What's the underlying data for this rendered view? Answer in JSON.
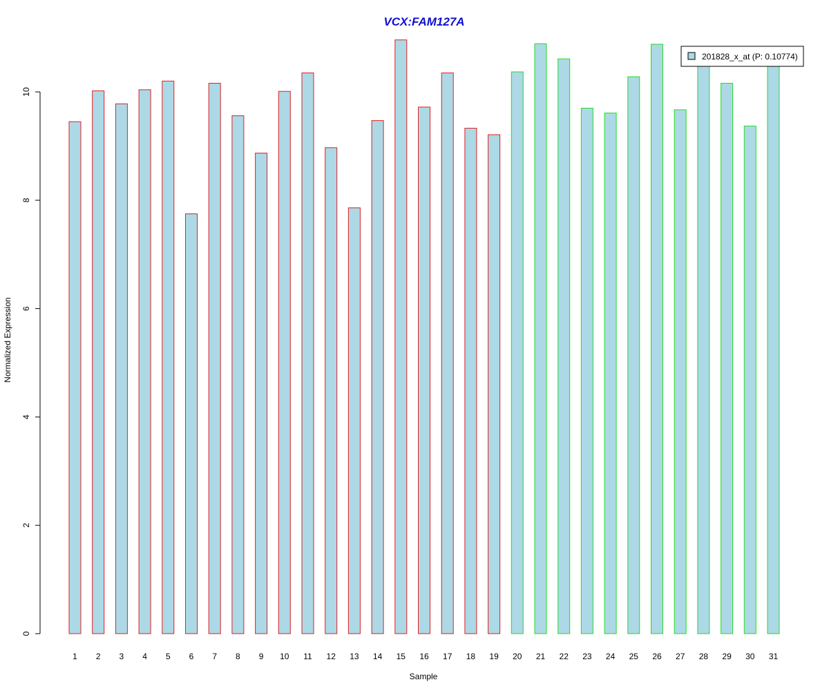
{
  "chart_data": {
    "type": "bar",
    "title": "VCX:FAM127A",
    "xlabel": "Sample",
    "ylabel": "Normalized Expression",
    "categories": [
      "1",
      "2",
      "3",
      "4",
      "5",
      "6",
      "7",
      "8",
      "9",
      "10",
      "11",
      "12",
      "13",
      "14",
      "15",
      "16",
      "17",
      "18",
      "19",
      "20",
      "21",
      "22",
      "23",
      "24",
      "25",
      "26",
      "27",
      "28",
      "29",
      "30",
      "31"
    ],
    "series": [
      {
        "name": "201828_x_at (P: 0.10774)",
        "values": [
          9.45,
          10.02,
          9.78,
          10.04,
          10.2,
          7.75,
          10.16,
          9.56,
          8.87,
          10.01,
          10.35,
          8.97,
          7.86,
          9.47,
          10.96,
          9.72,
          10.35,
          9.33,
          9.21,
          10.37,
          10.89,
          10.61,
          9.7,
          9.61,
          10.28,
          10.88,
          9.67,
          10.75,
          10.16,
          9.37,
          10.65
        ]
      }
    ],
    "group_border_colors": [
      "#dd2020",
      "#dd2020",
      "#dd2020",
      "#dd2020",
      "#dd2020",
      "#dd2020",
      "#dd2020",
      "#dd2020",
      "#dd2020",
      "#dd2020",
      "#dd2020",
      "#dd2020",
      "#dd2020",
      "#dd2020",
      "#dd2020",
      "#dd2020",
      "#dd2020",
      "#dd2020",
      "#dd2020",
      "#22dd22",
      "#22dd22",
      "#22dd22",
      "#22dd22",
      "#22dd22",
      "#22dd22",
      "#22dd22",
      "#22dd22",
      "#22dd22",
      "#22dd22",
      "#22dd22",
      "#22dd22"
    ],
    "bar_fill": "#add8e6",
    "title_color": "#1010d0",
    "ylim": [
      0,
      11
    ],
    "yticks": [
      0,
      2,
      4,
      6,
      8,
      10
    ],
    "legend_placement": "top-right",
    "grid": false
  }
}
